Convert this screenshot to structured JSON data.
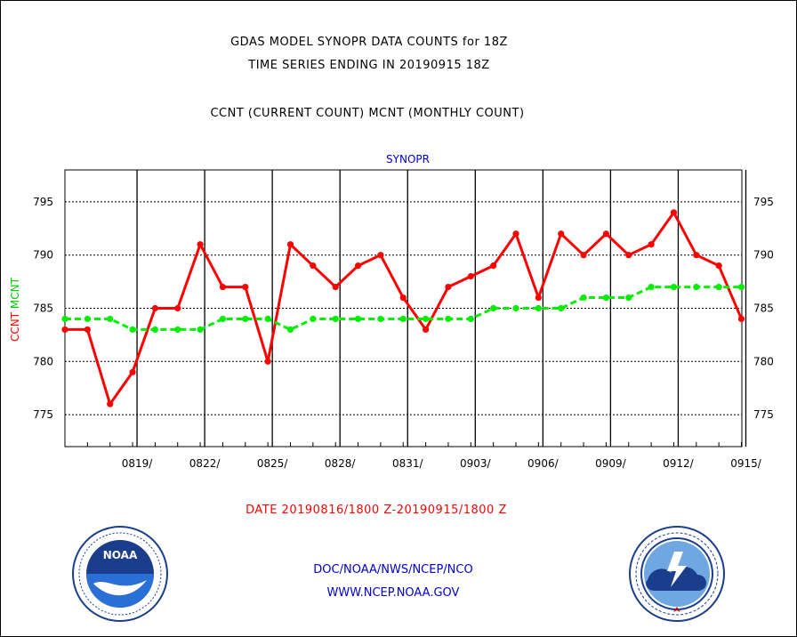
{
  "titles": {
    "line1": "GDAS MODEL SYNOPR DATA COUNTS for 18Z",
    "line2": "TIME SERIES ENDING IN 20190915 18Z",
    "line3": "CCNT (CURRENT COUNT) MCNT (MONTHLY COUNT)"
  },
  "date_range": "DATE 20190816/1800 Z-20190915/1800 Z",
  "footer": {
    "line1": "DOC/NOAA/NWS/NCEP/NCO",
    "line2": "WWW.NCEP.NOAA.GOV"
  },
  "logos": {
    "left": "noaa-logo",
    "right": "national-weather-service-logo"
  },
  "chart_data": {
    "type": "line",
    "title": "SYNOPR",
    "ylabel_series": [
      {
        "text": "CCNT",
        "color": "#ff0000"
      },
      {
        "text": "MCNT",
        "color": "#00cc00"
      }
    ],
    "ylim": [
      772,
      798
    ],
    "yticks": [
      775,
      780,
      785,
      790,
      795
    ],
    "x_count": 31,
    "xticks": [
      {
        "index": 3,
        "label": "0819/"
      },
      {
        "index": 6,
        "label": "0822/"
      },
      {
        "index": 9,
        "label": "0825/"
      },
      {
        "index": 12,
        "label": "0828/"
      },
      {
        "index": 15,
        "label": "0831/"
      },
      {
        "index": 18,
        "label": "0903/"
      },
      {
        "index": 21,
        "label": "0906/"
      },
      {
        "index": 24,
        "label": "0909/"
      },
      {
        "index": 27,
        "label": "0912/"
      },
      {
        "index": 30,
        "label": "0915/"
      }
    ],
    "grid": true,
    "series": [
      {
        "name": "CCNT",
        "color": "#ff0000",
        "style": "solid",
        "values": [
          783,
          783,
          776,
          779,
          785,
          785,
          791,
          787,
          787,
          780,
          791,
          789,
          787,
          789,
          790,
          786,
          783,
          787,
          788,
          789,
          792,
          786,
          792,
          790,
          792,
          790,
          791,
          794,
          790,
          789,
          784
        ]
      },
      {
        "name": "MCNT",
        "color": "#00ee00",
        "style": "dashed",
        "values": [
          784,
          784,
          784,
          783,
          783,
          783,
          783,
          784,
          784,
          784,
          783,
          784,
          784,
          784,
          784,
          784,
          784,
          784,
          784,
          785,
          785,
          785,
          785,
          786,
          786,
          786,
          787,
          787,
          787,
          787,
          787
        ]
      }
    ]
  }
}
